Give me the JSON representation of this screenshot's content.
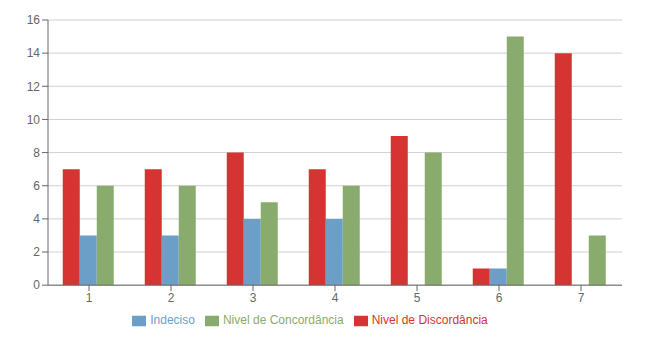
{
  "chart_data": {
    "type": "bar",
    "categories": [
      "1",
      "2",
      "3",
      "4",
      "5",
      "6",
      "7"
    ],
    "series": [
      {
        "name": "Nivel de Discordância",
        "color": "#d63333",
        "values": [
          7,
          7,
          8,
          7,
          9,
          1,
          14
        ]
      },
      {
        "name": "Indeciso",
        "color": "#6b9fc7",
        "values": [
          3,
          3,
          4,
          4,
          0,
          1,
          0
        ]
      },
      {
        "name": "Nivel de Concordância",
        "color": "#8aab6e",
        "values": [
          6,
          6,
          5,
          6,
          8,
          15,
          3
        ]
      }
    ],
    "ylim": [
      0,
      16
    ],
    "yticks": [
      0,
      2,
      4,
      6,
      8,
      10,
      12,
      14,
      16
    ],
    "grid": true,
    "legend": "bottom"
  }
}
